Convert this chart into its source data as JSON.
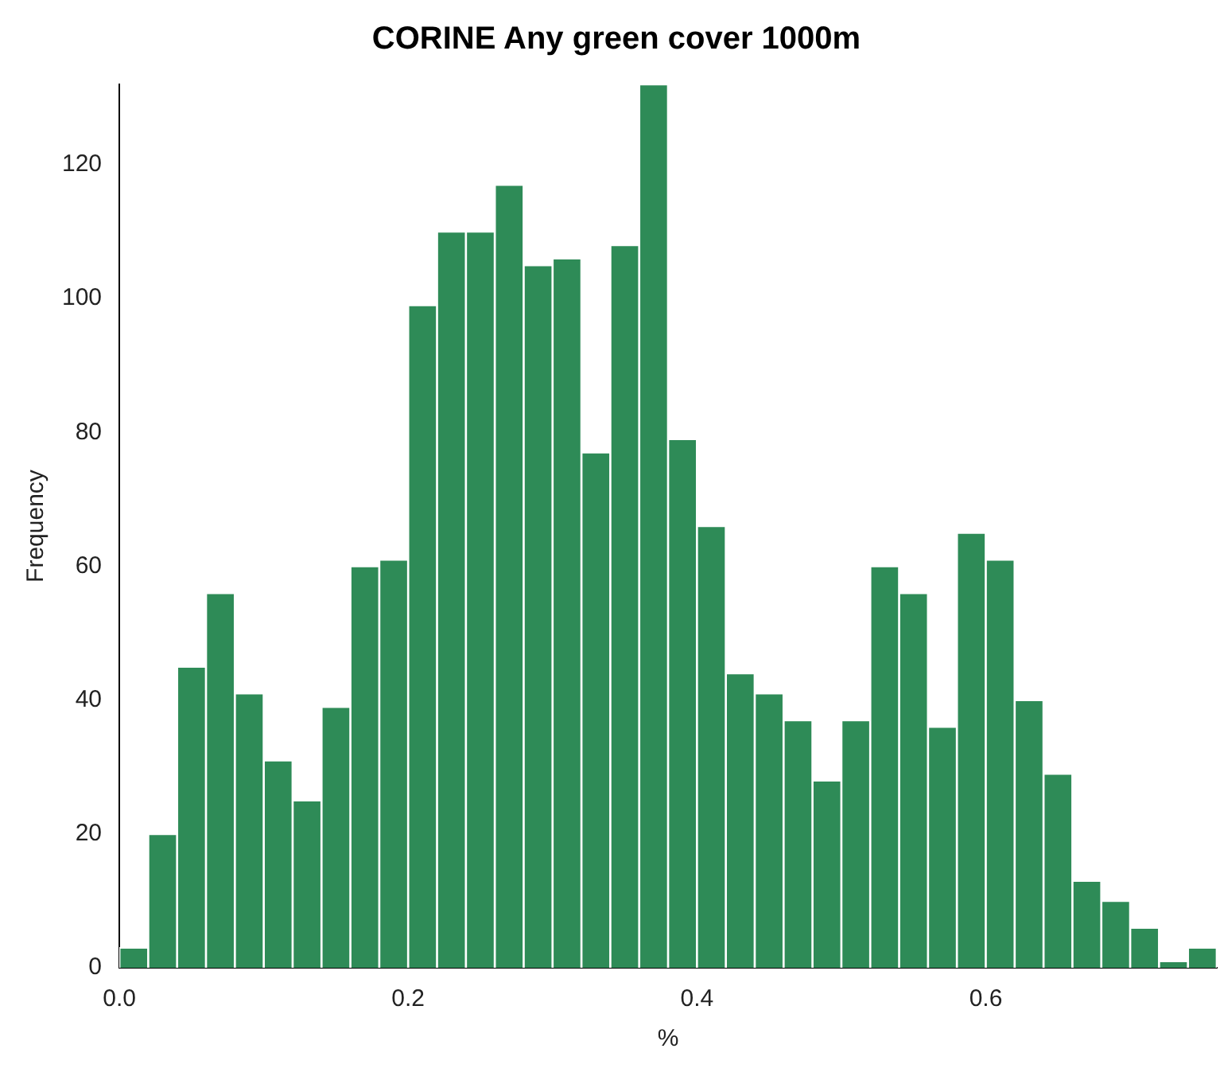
{
  "chart_data": {
    "type": "histogram",
    "title": "CORINE Any green cover 1000m",
    "xlabel": "%",
    "ylabel": "Frequency",
    "bins": [
      0,
      0.02,
      0.04,
      0.06,
      0.08,
      0.1,
      0.12,
      0.14,
      0.16,
      0.18,
      0.2,
      0.22,
      0.24,
      0.26,
      0.28,
      0.3,
      0.32,
      0.34,
      0.36,
      0.38,
      0.4,
      0.42,
      0.44,
      0.46,
      0.48,
      0.5,
      0.52,
      0.54,
      0.56,
      0.58,
      0.6,
      0.62,
      0.64,
      0.66,
      0.68,
      0.7,
      0.72,
      0.74,
      0.76
    ],
    "values": [
      3,
      20,
      45,
      56,
      41,
      31,
      25,
      39,
      60,
      61,
      99,
      110,
      110,
      117,
      105,
      106,
      77,
      108,
      132,
      79,
      66,
      44,
      41,
      37,
      28,
      37,
      60,
      56,
      36,
      65,
      61,
      40,
      29,
      13,
      10,
      6,
      1,
      3
    ],
    "color": "#2e8b57",
    "xlim": [
      0,
      0.76
    ],
    "ylim": [
      0,
      132
    ],
    "xticks": [
      {
        "value": 0,
        "label": "0.0"
      },
      0.2,
      0.4,
      0.6
    ],
    "yticks": [
      0,
      20,
      40,
      60,
      80,
      100,
      120
    ],
    "grid": false,
    "legend": false
  }
}
